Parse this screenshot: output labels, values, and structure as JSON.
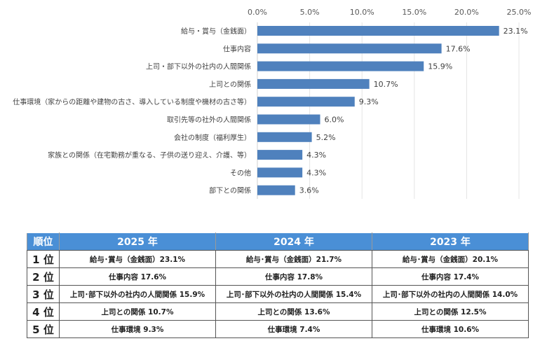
{
  "chart_data": {
    "type": "bar",
    "orientation": "horizontal",
    "categories": [
      "給与・賞与（金銭面）",
      "仕事内容",
      "上司・部下以外の社内の人間関係",
      "上司との関係",
      "仕事環境（家からの距離や建物の古さ、導入している制度や機材の古さ等）",
      "取引先等の社外の人間関係",
      "会社の制度（福利厚生）",
      "家族との関係（在宅勤務が重なる、子供の送り迎え、介護、等）",
      "その他",
      "部下との関係"
    ],
    "values": [
      23.1,
      17.6,
      15.9,
      10.7,
      9.3,
      6.0,
      5.2,
      4.3,
      4.3,
      3.6
    ],
    "data_labels": [
      "23.1%",
      "17.6%",
      "15.9%",
      "10.7%",
      "9.3%",
      "6.0%",
      "5.2%",
      "4.3%",
      "4.3%",
      "3.6%"
    ],
    "xlim": [
      0,
      25
    ],
    "ticks": [
      "0.0%",
      "5.0%",
      "10.0%",
      "15.0%",
      "20.0%",
      "25.0%"
    ],
    "xaxis_position": "top",
    "grid": true,
    "bar_color": "#4f81bd"
  },
  "table": {
    "headers": [
      "順位",
      "2025 年",
      "2024 年",
      "2023 年"
    ],
    "rows": [
      [
        "1 位",
        "給与･賞与（金銭面）23.1%",
        "給与･賞与（金銭面）21.7%",
        "給与･賞与（金銭面）20.1%"
      ],
      [
        "2 位",
        "仕事内容 17.6%",
        "仕事内容 17.8%",
        "仕事内容 17.4%"
      ],
      [
        "3 位",
        "上司･部下以外の社内の人間関係 15.9%",
        "上司･部下以外の社内の人間関係 15.4%",
        "上司･部下以外の社内の人間関係 14.0%"
      ],
      [
        "4 位",
        "上司との関係 10.7%",
        "上司との関係 13.6%",
        "上司との関係 12.5%"
      ],
      [
        "5 位",
        "仕事環境 9.3%",
        "仕事環境 7.4%",
        "仕事環境 10.6%"
      ]
    ],
    "header_color": "#4a8fd6"
  }
}
